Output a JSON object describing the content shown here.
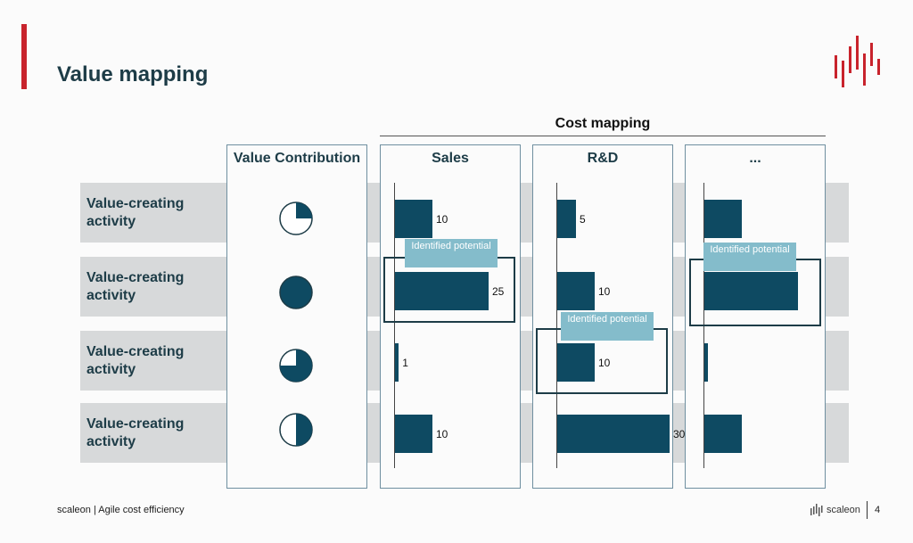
{
  "slide": {
    "title": "Value mapping",
    "cost_mapping_label": "Cost mapping",
    "accent_color": "#c8232c",
    "bar_color": "#0e4a62",
    "tag_color": "#84bccb"
  },
  "columns": {
    "value": "Value Contribution",
    "sales": "Sales",
    "rnd": "R&D",
    "more": "..."
  },
  "rows": [
    {
      "label": "Value-creating activity",
      "value_contribution_fraction": 0.25
    },
    {
      "label": "Value-creating activity",
      "value_contribution_fraction": 1.0
    },
    {
      "label": "Value-creating activity",
      "value_contribution_fraction": 0.75
    },
    {
      "label": "Value-creating activity",
      "value_contribution_fraction": 0.5
    }
  ],
  "chart_data": {
    "type": "bar",
    "categories": [
      "Value-creating activity",
      "Value-creating activity",
      "Value-creating activity",
      "Value-creating activity"
    ],
    "series": [
      {
        "name": "Sales",
        "values": [
          10,
          25,
          1,
          10
        ],
        "labels": [
          "10",
          "25",
          "1",
          "10"
        ]
      },
      {
        "name": "R&D",
        "values": [
          5,
          10,
          10,
          30
        ],
        "labels": [
          "5",
          "10",
          "10",
          "30"
        ]
      },
      {
        "name": "...",
        "values": [
          10,
          25,
          1,
          10
        ]
      }
    ],
    "title": "Cost mapping",
    "highlighted": [
      {
        "series": "Sales",
        "row": 2,
        "label": "Identified potential"
      },
      {
        "series": "R&D",
        "row": 3,
        "label": "Identified potential"
      },
      {
        "series": "...",
        "row": 2,
        "label": "Identified potential"
      }
    ]
  },
  "tags": {
    "identified_potential": "Identified potential"
  },
  "footer": {
    "left": "scaleon | Agile cost efficiency",
    "brand": "scaleon",
    "page": "4"
  },
  "icons": {
    "logo": "scaleon-bars-logo",
    "brand_mark": "scaleon-small-bars-icon"
  }
}
